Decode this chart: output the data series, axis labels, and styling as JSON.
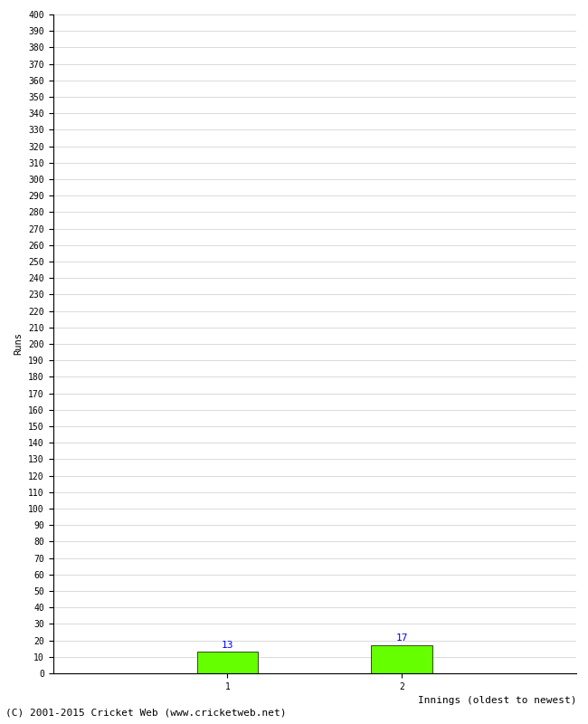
{
  "categories": [
    "1",
    "2"
  ],
  "values": [
    13,
    17
  ],
  "bar_color": "#66ff00",
  "bar_edge_color": "#000000",
  "label_color": "blue",
  "xlabel": "Innings (oldest to newest)",
  "ylabel": "Runs",
  "ylim": [
    0,
    400
  ],
  "ytick_step": 10,
  "background_color": "#ffffff",
  "grid_color": "#cccccc",
  "footer": "(C) 2001-2015 Cricket Web (www.cricketweb.net)",
  "bar_width": 0.35,
  "value_fontsize": 8,
  "axis_fontsize": 7.5,
  "ylabel_fontsize": 7.5,
  "xlabel_fontsize": 8,
  "footer_fontsize": 8,
  "tick_fontsize": 7
}
